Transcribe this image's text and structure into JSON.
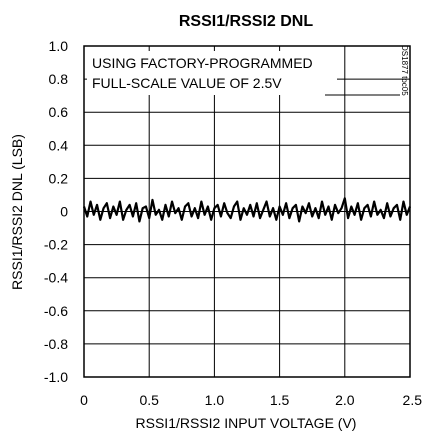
{
  "chart_data": {
    "type": "line",
    "title": "RSSI1/RSSI2 DNL",
    "xlabel": "RSSI1/RSSI2 INPUT VOLTAGE (V)",
    "ylabel": "RSSI1/RSSI2 DNL (LSB)",
    "xlim": [
      0,
      2.5
    ],
    "ylim": [
      -1.0,
      1.0
    ],
    "x_ticks": [
      "0",
      "0.5",
      "1.0",
      "1.5",
      "2.0",
      "2.5"
    ],
    "y_ticks": [
      "1.0",
      "0.8",
      "0.6",
      "0.4",
      "0.2",
      "0",
      "-0.2",
      "-0.4",
      "-0.6",
      "-0.8",
      "-1.0"
    ],
    "annotation": [
      "USING FACTORY-PROGRAMMED",
      "FULL-SCALE VALUE OF 2.5V"
    ],
    "figure_id": "DS1877 toc05",
    "grid": true,
    "series": [
      {
        "x": [
          0,
          0.025,
          0.05,
          0.075,
          0.1,
          0.125,
          0.15,
          0.175,
          0.2,
          0.225,
          0.25,
          0.275,
          0.3,
          0.325,
          0.35,
          0.375,
          0.4,
          0.425,
          0.45,
          0.475,
          0.5,
          0.525,
          0.55,
          0.575,
          0.6,
          0.625,
          0.65,
          0.675,
          0.7,
          0.725,
          0.75,
          0.775,
          0.8,
          0.825,
          0.85,
          0.875,
          0.9,
          0.925,
          0.95,
          0.975,
          1.0,
          1.025,
          1.05,
          1.075,
          1.1,
          1.125,
          1.15,
          1.175,
          1.2,
          1.225,
          1.25,
          1.275,
          1.3,
          1.325,
          1.35,
          1.375,
          1.4,
          1.425,
          1.45,
          1.475,
          1.5,
          1.525,
          1.55,
          1.575,
          1.6,
          1.625,
          1.65,
          1.675,
          1.7,
          1.725,
          1.75,
          1.775,
          1.8,
          1.825,
          1.85,
          1.875,
          1.9,
          1.925,
          1.95,
          1.975,
          2.0,
          2.025,
          2.05,
          2.075,
          2.1,
          2.125,
          2.15,
          2.175,
          2.2,
          2.225,
          2.25,
          2.275,
          2.3,
          2.325,
          2.35,
          2.375,
          2.4,
          2.425,
          2.45,
          2.475,
          2.5
        ],
        "y": [
          0.03,
          -0.03,
          0.06,
          -0.02,
          0.04,
          -0.05,
          0.02,
          0.05,
          -0.04,
          0.03,
          -0.02,
          0.06,
          -0.05,
          0.01,
          0.04,
          -0.03,
          0.05,
          -0.06,
          0.02,
          0.03,
          -0.04,
          0.07,
          -0.02,
          0.01,
          -0.05,
          0.04,
          -0.03,
          0.06,
          -0.01,
          0.02,
          -0.05,
          0.03,
          0.05,
          -0.03,
          0.02,
          -0.04,
          0.06,
          -0.02,
          0.03,
          -0.05,
          0.02,
          0.04,
          -0.03,
          0.05,
          -0.01,
          -0.04,
          0.03,
          0.06,
          -0.05,
          0.02,
          -0.02,
          0.04,
          -0.03,
          0.05,
          -0.04,
          0.01,
          0.06,
          -0.03,
          0.02,
          -0.05,
          0.03,
          -0.02,
          0.05,
          -0.04,
          0.02,
          0.04,
          -0.06,
          0.03,
          -0.01,
          0.05,
          -0.03,
          0.02,
          -0.04,
          0.06,
          -0.02,
          0.03,
          -0.05,
          0.04,
          -0.01,
          0.02,
          0.08,
          -0.04,
          0.03,
          -0.02,
          0.05,
          -0.05,
          0.02,
          0.04,
          -0.03,
          0.06,
          -0.02,
          0.01,
          -0.04,
          0.05,
          -0.03,
          0.02,
          0.04,
          -0.05,
          0.06,
          -0.02,
          0.03
        ]
      }
    ]
  }
}
